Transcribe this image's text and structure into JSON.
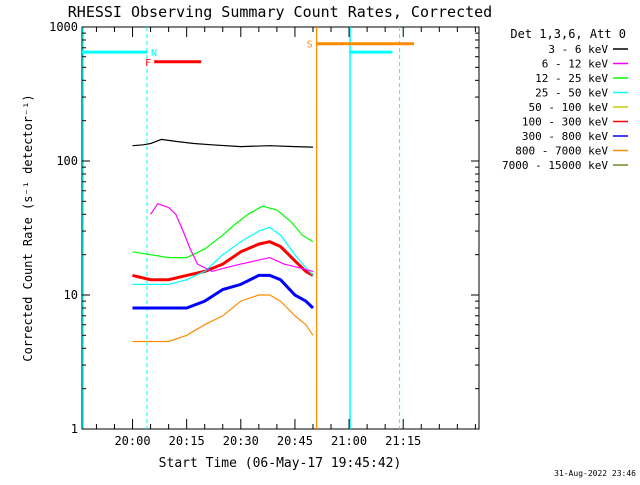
{
  "chart_data": {
    "type": "line",
    "title": "RHESSI Observing Summary Count Rates, Corrected",
    "xlabel": "Start Time (06-May-17 19:45:42)",
    "ylabel": "Corrected Count Rate (s⁻¹ detector⁻¹)",
    "yscale": "log",
    "ylim": [
      1,
      1000
    ],
    "y_ticks": [
      1,
      10,
      100,
      1000
    ],
    "y_tick_labels": [
      "1",
      "10",
      "100",
      "1000"
    ],
    "x_range_minutes": [
      -14,
      96
    ],
    "x_ticks": [
      {
        "t": 0,
        "label": "20:00"
      },
      {
        "t": 15,
        "label": "20:15"
      },
      {
        "t": 30,
        "label": "20:30"
      },
      {
        "t": 45,
        "label": "20:45"
      },
      {
        "t": 60,
        "label": "21:00"
      },
      {
        "t": 75,
        "label": "21:15"
      }
    ],
    "legend": {
      "placement": "right",
      "header": "Det 1,3,6, Att 0",
      "entries": [
        {
          "label": "3 - 6 keV",
          "color": "#000000"
        },
        {
          "label": "6 - 12 keV",
          "color": "#ff00ff"
        },
        {
          "label": "12 - 25 keV",
          "color": "#00ff00"
        },
        {
          "label": "25 - 50 keV",
          "color": "#00ffff"
        },
        {
          "label": "50 - 100 keV",
          "color": "#c8c800"
        },
        {
          "label": "100 - 300 keV",
          "color": "#ff0000"
        },
        {
          "label": "300 - 800 keV",
          "color": "#0000ff"
        },
        {
          "label": "800 - 7000 keV",
          "color": "#ff8c00"
        },
        {
          "label": "7000 - 15000 keV",
          "color": "#6b8e23"
        }
      ]
    },
    "series": [
      {
        "name": "3 - 6 keV",
        "color": "#000000",
        "x": [
          0,
          3,
          5,
          8,
          12,
          17,
          22,
          30,
          38,
          45,
          50
        ],
        "y": [
          130,
          132,
          135,
          145,
          140,
          135,
          132,
          128,
          130,
          128,
          127
        ]
      },
      {
        "name": "6 - 12 keV",
        "color": "#ff00ff",
        "x": [
          5,
          7,
          10,
          12,
          14,
          16,
          18,
          22,
          26,
          30,
          34,
          38,
          42,
          46,
          50
        ],
        "y": [
          40,
          48,
          45,
          40,
          30,
          22,
          17,
          15,
          16,
          17,
          18,
          19,
          17,
          16,
          15
        ]
      },
      {
        "name": "12 - 25 keV",
        "color": "#00ff00",
        "x": [
          0,
          5,
          10,
          15,
          20,
          25,
          28,
          32,
          36,
          40,
          44,
          47,
          50
        ],
        "y": [
          21,
          20,
          19,
          19,
          22,
          28,
          33,
          40,
          46,
          43,
          35,
          28,
          25
        ]
      },
      {
        "name": "25 - 50 keV",
        "color": "#00ffff",
        "x": [
          0,
          5,
          10,
          15,
          20,
          25,
          30,
          35,
          38,
          41,
          45,
          48,
          50
        ],
        "y": [
          12,
          12,
          12,
          13,
          15,
          20,
          25,
          30,
          32,
          28,
          20,
          16,
          14
        ]
      },
      {
        "name": "100 - 300 keV",
        "color": "#ff0000",
        "x": [
          0,
          5,
          10,
          15,
          20,
          25,
          30,
          35,
          38,
          41,
          45,
          48,
          50
        ],
        "y": [
          14,
          13,
          13,
          14,
          15,
          17,
          21,
          24,
          25,
          23,
          18,
          15,
          14
        ]
      },
      {
        "name": "300 - 800 keV",
        "color": "#0000ff",
        "x": [
          0,
          5,
          10,
          15,
          20,
          25,
          30,
          35,
          38,
          41,
          45,
          48,
          50
        ],
        "y": [
          8,
          8,
          8,
          8,
          9,
          11,
          12,
          14,
          14,
          13,
          10,
          9,
          8
        ]
      },
      {
        "name": "800 - 7000 keV",
        "color": "#ff8c00",
        "x": [
          0,
          5,
          10,
          15,
          20,
          25,
          30,
          35,
          38,
          41,
          45,
          48,
          50
        ],
        "y": [
          4.5,
          4.5,
          4.5,
          5,
          6,
          7,
          9,
          10,
          10,
          9,
          7,
          6,
          5
        ]
      }
    ],
    "flags": [
      {
        "label": "N",
        "color": "#00ffff",
        "segments": [
          [
            -14,
            4
          ],
          [
            60,
            72
          ]
        ],
        "level": 650,
        "marker_lines": [
          4,
          74
        ],
        "edge_lines": [
          -14,
          60
        ]
      },
      {
        "label": "F",
        "color": "#ff0000",
        "segments": [
          [
            6,
            19
          ]
        ],
        "level": 550
      },
      {
        "label": "S",
        "color": "#ff8c00",
        "segments": [
          [
            51,
            78
          ]
        ],
        "level": 750,
        "marker_lines": [
          51
        ]
      }
    ],
    "timestamp": "31-Aug-2022 23:46"
  }
}
